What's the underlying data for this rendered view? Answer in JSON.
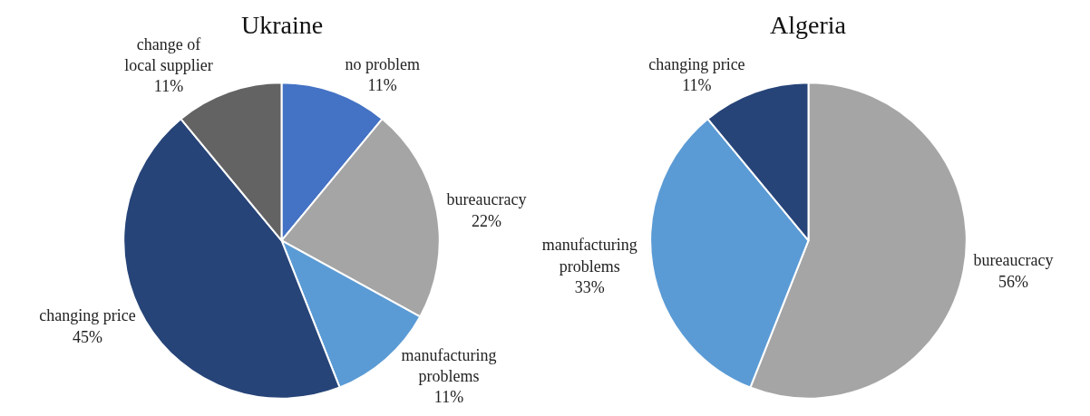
{
  "chart_data": [
    {
      "type": "pie",
      "title": "Ukraine",
      "categories": [
        "no problem",
        "bureaucracy",
        "manufacturing problems",
        "changing price",
        "change of local supplier"
      ],
      "values": [
        11,
        22,
        11,
        45,
        11
      ],
      "colors": [
        "#4472c4",
        "#a5a5a5",
        "#5b9bd5",
        "#264478",
        "#636363"
      ],
      "value_labels": [
        "11%",
        "22%",
        "11%",
        "45%",
        "11%"
      ]
    },
    {
      "type": "pie",
      "title": "Algeria",
      "categories": [
        "bureaucracy",
        "manufacturing problems",
        "changing price"
      ],
      "values": [
        56,
        33,
        11
      ],
      "colors": [
        "#a5a5a5",
        "#5b9bd5",
        "#264478"
      ],
      "value_labels": [
        "56%",
        "33%",
        "11%"
      ]
    }
  ]
}
